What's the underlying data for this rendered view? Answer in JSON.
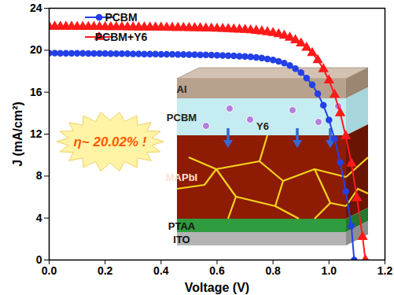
{
  "chart_data": {
    "type": "line",
    "x_label": "Voltage (V)",
    "y_label": "J (mA/cm²)",
    "xlim": [
      0,
      1.2
    ],
    "xticks": [
      {
        "value": 0,
        "label": "0.0"
      },
      {
        "value": 0.2,
        "label": "0.2"
      },
      {
        "value": 0.4,
        "label": "0.4"
      },
      {
        "value": 0.6,
        "label": "0.6"
      },
      {
        "value": 0.8,
        "label": "0.8"
      },
      {
        "value": 1.0,
        "label": "1.0"
      },
      {
        "value": 1.2,
        "label": "1.2"
      }
    ],
    "ylim": [
      0,
      24
    ],
    "yticks": [
      0,
      4,
      8,
      12,
      16,
      20,
      24
    ],
    "grid": false,
    "legend": "top-left",
    "annotations": [
      "η~ 20.02% !"
    ],
    "inset": {
      "layers": [
        "Al",
        "PCBM",
        "MAPbI",
        "PTAA",
        "ITO"
      ],
      "additive": "Y6"
    },
    "series": [
      {
        "name": "PCBM",
        "color": "#2440e6",
        "marker": "circle",
        "x": [
          0,
          0.02,
          0.04,
          0.06,
          0.08,
          0.1,
          0.12,
          0.14,
          0.16,
          0.18,
          0.2,
          0.22,
          0.24,
          0.26,
          0.28,
          0.3,
          0.32,
          0.34,
          0.36,
          0.38,
          0.4,
          0.42,
          0.44,
          0.46,
          0.48,
          0.5,
          0.52,
          0.54,
          0.56,
          0.58,
          0.6,
          0.62,
          0.64,
          0.66,
          0.68,
          0.7,
          0.72,
          0.74,
          0.76,
          0.78,
          0.8,
          0.82,
          0.84,
          0.86,
          0.88,
          0.9,
          0.92,
          0.94,
          0.96,
          0.98,
          1.0,
          1.02,
          1.04,
          1.06,
          1.08,
          1.09
        ],
        "values": [
          19.72,
          19.72,
          19.71,
          19.71,
          19.7,
          19.7,
          19.7,
          19.69,
          19.69,
          19.68,
          19.68,
          19.67,
          19.67,
          19.66,
          19.66,
          19.65,
          19.65,
          19.64,
          19.64,
          19.63,
          19.62,
          19.62,
          19.61,
          19.6,
          19.59,
          19.58,
          19.57,
          19.56,
          19.55,
          19.53,
          19.52,
          19.5,
          19.48,
          19.46,
          19.43,
          19.4,
          19.36,
          19.31,
          19.25,
          19.17,
          19.07,
          18.94,
          18.77,
          18.55,
          18.25,
          17.86,
          17.35,
          16.7,
          15.85,
          14.75,
          13.35,
          11.55,
          9.3,
          6.55,
          3.25,
          0
        ]
      },
      {
        "name": "PCBM+Y6",
        "color": "#ff1a1a",
        "marker": "triangle",
        "x": [
          0,
          0.02,
          0.04,
          0.06,
          0.08,
          0.1,
          0.12,
          0.14,
          0.16,
          0.18,
          0.2,
          0.22,
          0.24,
          0.26,
          0.28,
          0.3,
          0.32,
          0.34,
          0.36,
          0.38,
          0.4,
          0.42,
          0.44,
          0.46,
          0.48,
          0.5,
          0.52,
          0.54,
          0.56,
          0.58,
          0.6,
          0.62,
          0.64,
          0.66,
          0.68,
          0.7,
          0.72,
          0.74,
          0.76,
          0.78,
          0.8,
          0.82,
          0.84,
          0.86,
          0.88,
          0.9,
          0.92,
          0.94,
          0.96,
          0.98,
          1.0,
          1.02,
          1.04,
          1.06,
          1.08,
          1.1,
          1.12,
          1.13
        ],
        "values": [
          22.25,
          22.25,
          22.24,
          22.24,
          22.24,
          22.23,
          22.23,
          22.22,
          22.22,
          22.22,
          22.21,
          22.21,
          22.2,
          22.2,
          22.19,
          22.19,
          22.18,
          22.18,
          22.17,
          22.17,
          22.16,
          22.15,
          22.14,
          22.13,
          22.13,
          22.12,
          22.11,
          22.1,
          22.08,
          22.07,
          22.05,
          22.04,
          22.02,
          21.99,
          21.97,
          21.94,
          21.9,
          21.86,
          21.8,
          21.73,
          21.64,
          21.53,
          21.39,
          21.2,
          20.96,
          20.65,
          20.24,
          19.73,
          19.05,
          18.2,
          17.12,
          15.75,
          14.0,
          11.8,
          9.2,
          5.9,
          2.2,
          0
        ]
      }
    ]
  }
}
